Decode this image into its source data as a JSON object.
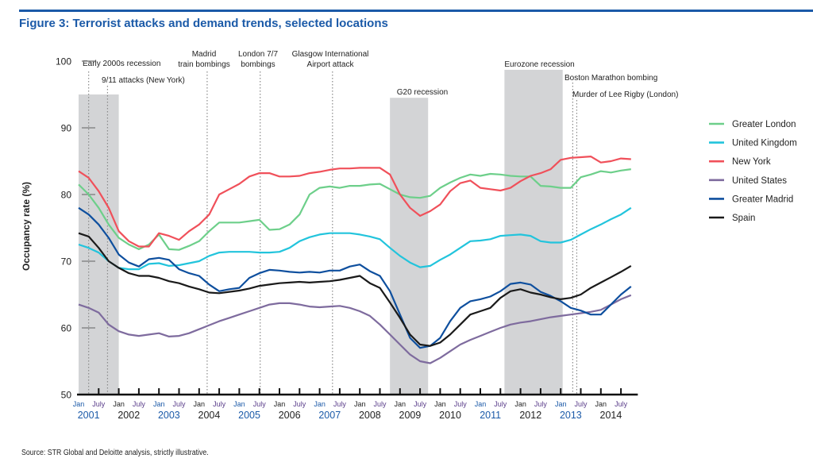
{
  "header": {
    "title": "Figure 3: Terrorist attacks and demand trends, selected locations"
  },
  "footer": {
    "source": "Source: STR Global and Deloitte analysis, strictly illustrative."
  },
  "chart_data": {
    "type": "line",
    "title": "Figure 3: Terrorist attacks and demand trends, selected locations",
    "xlabel": "",
    "ylabel": "Occupancy rate (%)",
    "ylim": [
      50,
      100
    ],
    "yticks": [
      50,
      60,
      70,
      80,
      90,
      100
    ],
    "xlim": [
      2001.0,
      2014.85
    ],
    "x_month_labels": [
      "Jan",
      "July"
    ],
    "x_years": [
      "2001",
      "2002",
      "2003",
      "2004",
      "2005",
      "2006",
      "2007",
      "2008",
      "2009",
      "2010",
      "2011",
      "2012",
      "2013",
      "2014"
    ],
    "year_label_colors": {
      "2001": "#1b5aa8",
      "2002": "#222222",
      "2003": "#1b5aa8",
      "2004": "#222222",
      "2005": "#1b5aa8",
      "2006": "#222222",
      "2007": "#1b5aa8",
      "2008": "#222222",
      "2009": "#222222",
      "2010": "#222222",
      "2011": "#1b5aa8",
      "2012": "#222222",
      "2013": "#1b5aa8",
      "2014": "#222222"
    },
    "grid": false,
    "legend_position": "right",
    "shaded_periods": [
      {
        "label": "Early 2000s recession",
        "start": 2001.0,
        "end": 2002.0,
        "top": 95
      },
      {
        "label": "G20 recession",
        "start": 2008.75,
        "end": 2009.7,
        "top": 94.5
      },
      {
        "label": "Eurozone recession",
        "start": 2011.6,
        "end": 2013.05,
        "top": 98.7
      }
    ],
    "events": [
      {
        "label": "Early 2000s recession",
        "x": 2001.25,
        "label_level": 1,
        "shaded_label": true
      },
      {
        "label": "9/11 attacks (New York)",
        "x": 2001.72,
        "label_level": 2
      },
      {
        "label": "Madrid train bombings",
        "x": 2004.2,
        "label_level": 0
      },
      {
        "label": "London 7/7 bombings",
        "x": 2005.52,
        "label_level": 0
      },
      {
        "label": "Glasgow International Airport attack",
        "x": 2007.32,
        "label_level": 0
      },
      {
        "label": "Boston Marathon bombing",
        "x": 2013.3,
        "label_level": 3
      },
      {
        "label": "Murder of Lee Rigby (London)",
        "x": 2013.4,
        "label_level": 4
      }
    ],
    "x": [
      2001.0,
      2001.25,
      2001.5,
      2001.75,
      2002.0,
      2002.25,
      2002.5,
      2002.75,
      2003.0,
      2003.25,
      2003.5,
      2003.75,
      2004.0,
      2004.25,
      2004.5,
      2004.75,
      2005.0,
      2005.25,
      2005.5,
      2005.75,
      2006.0,
      2006.25,
      2006.5,
      2006.75,
      2007.0,
      2007.25,
      2007.5,
      2007.75,
      2008.0,
      2008.25,
      2008.5,
      2008.75,
      2009.0,
      2009.25,
      2009.5,
      2009.75,
      2010.0,
      2010.25,
      2010.5,
      2010.75,
      2011.0,
      2011.25,
      2011.5,
      2011.75,
      2012.0,
      2012.25,
      2012.5,
      2012.75,
      2013.0,
      2013.25,
      2013.5,
      2013.75,
      2014.0,
      2014.25,
      2014.5,
      2014.75
    ],
    "series": [
      {
        "name": "Greater London",
        "color": "#6dcf8a",
        "values": [
          81.5,
          80.0,
          78.0,
          75.5,
          73.5,
          72.5,
          71.8,
          72.5,
          74.0,
          71.8,
          71.7,
          72.3,
          73.0,
          74.5,
          75.8,
          75.8,
          75.8,
          76.0,
          76.2,
          74.7,
          74.8,
          75.5,
          77.0,
          80.0,
          81.0,
          81.2,
          81.0,
          81.3,
          81.3,
          81.5,
          81.6,
          80.8,
          80.0,
          79.6,
          79.5,
          79.8,
          81.0,
          81.8,
          82.5,
          83.0,
          82.8,
          83.1,
          83.0,
          82.8,
          82.7,
          82.7,
          81.3,
          81.2,
          81.0,
          81.0,
          82.6,
          83.0,
          83.5,
          83.3,
          83.6,
          83.8
        ]
      },
      {
        "name": "United Kingdom",
        "color": "#22c4dc",
        "values": [
          72.5,
          72.0,
          71.3,
          70.0,
          69.0,
          68.8,
          68.8,
          69.6,
          69.7,
          69.3,
          69.4,
          69.7,
          70.0,
          70.8,
          71.3,
          71.4,
          71.4,
          71.4,
          71.3,
          71.3,
          71.4,
          72.0,
          73.0,
          73.6,
          74.0,
          74.2,
          74.2,
          74.2,
          74.0,
          73.7,
          73.3,
          72.0,
          70.8,
          69.8,
          69.1,
          69.3,
          70.2,
          71.0,
          72.0,
          73.0,
          73.1,
          73.3,
          73.8,
          73.9,
          74.0,
          73.8,
          73.0,
          72.8,
          72.8,
          73.2,
          74.0,
          74.8,
          75.5,
          76.3,
          77.0,
          78.0
        ]
      },
      {
        "name": "New York",
        "color": "#f0505a",
        "values": [
          83.5,
          82.5,
          80.5,
          78.0,
          74.5,
          73.0,
          72.2,
          72.2,
          74.2,
          73.8,
          73.2,
          74.5,
          75.5,
          77.0,
          80.0,
          80.8,
          81.6,
          82.7,
          83.2,
          83.2,
          82.7,
          82.7,
          82.8,
          83.2,
          83.4,
          83.7,
          83.9,
          83.9,
          84.0,
          84.0,
          84.0,
          83.0,
          80.0,
          78.0,
          76.8,
          77.5,
          78.5,
          80.5,
          81.7,
          82.1,
          81.0,
          80.8,
          80.6,
          81.0,
          82.0,
          82.8,
          83.2,
          83.8,
          85.2,
          85.5,
          85.6,
          85.7,
          84.8,
          85.0,
          85.4,
          85.3
        ]
      },
      {
        "name": "United States",
        "color": "#7e6b9e",
        "values": [
          63.5,
          63.0,
          62.3,
          60.5,
          59.5,
          59.0,
          58.8,
          59.0,
          59.2,
          58.7,
          58.8,
          59.2,
          59.8,
          60.4,
          61.0,
          61.5,
          62.0,
          62.5,
          63.0,
          63.5,
          63.7,
          63.7,
          63.5,
          63.2,
          63.1,
          63.2,
          63.3,
          63.0,
          62.5,
          61.8,
          60.5,
          59.0,
          57.5,
          56.0,
          55.0,
          54.7,
          55.5,
          56.5,
          57.5,
          58.2,
          58.8,
          59.4,
          60.0,
          60.5,
          60.8,
          61.0,
          61.3,
          61.6,
          61.8,
          62.0,
          62.2,
          62.4,
          62.7,
          63.5,
          64.3,
          64.9
        ]
      },
      {
        "name": "Greater Madrid",
        "color": "#0e4f9e",
        "values": [
          78.0,
          77.0,
          75.5,
          73.5,
          71.0,
          69.8,
          69.2,
          70.3,
          70.5,
          70.2,
          68.8,
          68.2,
          67.8,
          66.5,
          65.5,
          65.8,
          66.0,
          67.5,
          68.2,
          68.7,
          68.6,
          68.4,
          68.3,
          68.4,
          68.3,
          68.6,
          68.6,
          69.2,
          69.5,
          68.5,
          67.8,
          65.5,
          62.0,
          58.5,
          57.0,
          57.3,
          58.5,
          61.0,
          63.0,
          64.0,
          64.3,
          64.7,
          65.5,
          66.6,
          66.8,
          66.5,
          65.4,
          64.8,
          64.0,
          63.0,
          62.6,
          62.0,
          62.0,
          63.5,
          65.0,
          66.2
        ]
      },
      {
        "name": "Spain",
        "color": "#1a1a1a",
        "values": [
          74.2,
          73.7,
          72.0,
          70.0,
          69.0,
          68.2,
          67.8,
          67.8,
          67.5,
          67.0,
          66.7,
          66.2,
          65.8,
          65.3,
          65.2,
          65.4,
          65.6,
          65.9,
          66.3,
          66.5,
          66.7,
          66.8,
          66.9,
          66.8,
          66.9,
          67.0,
          67.2,
          67.5,
          67.8,
          66.7,
          66.0,
          63.8,
          61.5,
          59.0,
          57.5,
          57.3,
          57.8,
          59.0,
          60.5,
          62.0,
          62.5,
          63.0,
          64.5,
          65.5,
          65.8,
          65.3,
          65.0,
          64.6,
          64.3,
          64.5,
          65.0,
          66.0,
          66.8,
          67.6,
          68.4,
          69.3
        ]
      }
    ]
  }
}
